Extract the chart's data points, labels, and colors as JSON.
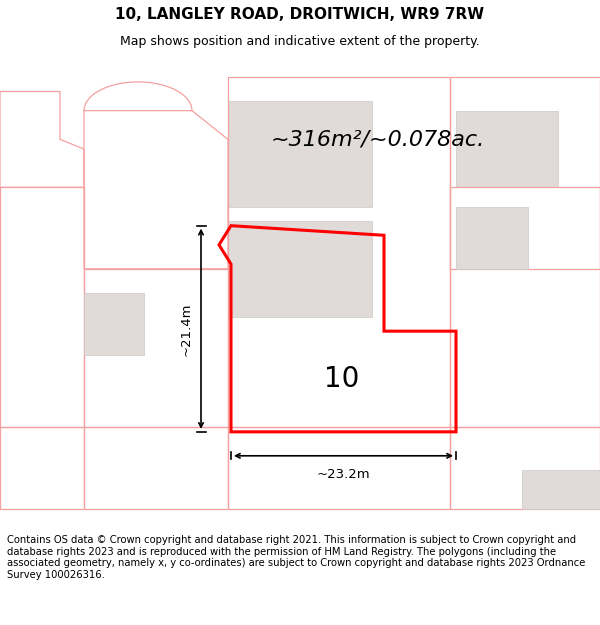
{
  "title": "10, LANGLEY ROAD, DROITWICH, WR9 7RW",
  "subtitle": "Map shows position and indicative extent of the property.",
  "footer": "Contains OS data © Crown copyright and database right 2021. This information is subject to Crown copyright and database rights 2023 and is reproduced with the permission of HM Land Registry. The polygons (including the associated geometry, namely x, y co-ordinates) are subject to Crown copyright and database rights 2023 Ordnance Survey 100026316.",
  "area_text": "~316m²/~0.078ac.",
  "width_label": "~23.2m",
  "height_label": "~21.4m",
  "number_label": "10",
  "bg_white": "#ffffff",
  "map_bg": "#ffffff",
  "plot_red": "#ff0000",
  "neighbor_line": "#f4a0a0",
  "building_fill": "#e0dbd8",
  "building_edge": "#ccc8c5",
  "title_fontsize": 11,
  "subtitle_fontsize": 9,
  "footer_fontsize": 7.2
}
